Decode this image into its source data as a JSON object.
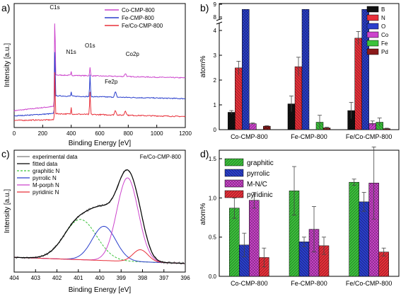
{
  "chart_data": [
    {
      "panel_label": "a)",
      "type": "line",
      "xlabel": "Binding Energy [eV]",
      "ylabel": "Intensity [a.u.]",
      "xlim": [
        0,
        1200
      ],
      "xticks": [
        "0",
        "200",
        "400",
        "600",
        "800",
        "1000",
        "1200"
      ],
      "legend_position": "top-right",
      "annotations": [
        {
          "text": "C1s",
          "x": 285
        },
        {
          "text": "N1s",
          "x": 400
        },
        {
          "text": "O1s",
          "x": 532
        },
        {
          "text": "Co2p",
          "x": 780
        },
        {
          "text": "Fe2p",
          "x": 710
        }
      ],
      "series": [
        {
          "name": "Co-CMP-800",
          "color": "#cc44cc",
          "offset": 3.0,
          "peaks": [
            {
              "x": 285,
              "h": 6.2,
              "w": 3
            },
            {
              "x": 400,
              "h": 0.25,
              "w": 3
            },
            {
              "x": 532,
              "h": 0.55,
              "w": 4
            },
            {
              "x": 780,
              "h": 0.2,
              "w": 8
            }
          ],
          "noise": 0.06
        },
        {
          "name": "Fe-CMP-800",
          "color": "#2a3fcc",
          "offset": 1.6,
          "peaks": [
            {
              "x": 285,
              "h": 4.6,
              "w": 3
            },
            {
              "x": 400,
              "h": 0.3,
              "w": 3
            },
            {
              "x": 532,
              "h": 1.45,
              "w": 4
            },
            {
              "x": 710,
              "h": 0.35,
              "w": 8
            }
          ],
          "noise": 0.06
        },
        {
          "name": "Fe/Co-CMP-800",
          "color": "#e8303a",
          "offset": 0.4,
          "peaks": [
            {
              "x": 285,
              "h": 3.6,
              "w": 3
            },
            {
              "x": 400,
              "h": 0.45,
              "w": 3
            },
            {
              "x": 532,
              "h": 1.5,
              "w": 4
            },
            {
              "x": 710,
              "h": 0.3,
              "w": 8
            },
            {
              "x": 780,
              "h": 0.3,
              "w": 8
            }
          ],
          "noise": 0.07
        }
      ]
    },
    {
      "panel_label": "b)",
      "type": "bar",
      "ylabel": "atom%",
      "ylim": [
        0,
        9
      ],
      "axis_break": [
        4.2,
        8.0
      ],
      "yticks_lower": [
        "0",
        "1",
        "2",
        "3",
        "4"
      ],
      "yticks_upper": [
        "8",
        "9"
      ],
      "categories": [
        "Co-CMP-800",
        "Fe-CMP-800",
        "Fe/Co-CMP-800"
      ],
      "legend_position": "top-right",
      "series": [
        {
          "name": "B",
          "color": "#111111",
          "values": [
            0.7,
            1.04,
            0.77
          ],
          "err": [
            0.07,
            0.32,
            0.33
          ]
        },
        {
          "name": "N",
          "color": "#e8303a",
          "values": [
            2.49,
            2.54,
            3.69
          ],
          "err": [
            0.27,
            0.38,
            0.27
          ]
        },
        {
          "name": "O",
          "color": "#2a3fcc",
          "values": [
            8.6,
            8.6,
            8.6
          ],
          "err": [
            0,
            0,
            0
          ]
        },
        {
          "name": "Co",
          "color": "#cc44cc",
          "values": [
            0.24,
            0.0,
            0.25
          ],
          "err": [
            0.03,
            0.0,
            0.1
          ]
        },
        {
          "name": "Fe",
          "color": "#3cc23c",
          "values": [
            0.0,
            0.3,
            0.3
          ],
          "err": [
            0.0,
            0.28,
            0.17
          ]
        },
        {
          "name": "Pd",
          "color": "#8b1a1a",
          "values": [
            0.14,
            0.07,
            0.04
          ],
          "err": [
            0.02,
            0.03,
            0.02
          ]
        }
      ]
    },
    {
      "panel_label": "c)",
      "type": "line",
      "title": "Fe/Co-CMP-800",
      "xlabel": "Binding Energy [eV]",
      "ylabel": "Intensity [a.u.]",
      "xlim": [
        404,
        396
      ],
      "xticks": [
        "404",
        "403",
        "402",
        "401",
        "400",
        "399",
        "398",
        "397",
        "396"
      ],
      "legend_position": "top-left",
      "series": [
        {
          "name": "experimental data",
          "color": "#7a7a7a"
        },
        {
          "name": "fitted data",
          "color": "#000000"
        },
        {
          "name": "graphitic N",
          "color": "#3cc23c",
          "dashed": true,
          "center": 400.9,
          "height": 0.4,
          "sigma": 0.75
        },
        {
          "name": "pyrrolic N",
          "color": "#2a3fcc",
          "center": 399.8,
          "height": 0.34,
          "sigma": 0.55
        },
        {
          "name": "M-porph N",
          "color": "#cc44cc",
          "center": 398.7,
          "height": 0.83,
          "sigma": 0.5
        },
        {
          "name": "pyridinic N",
          "color": "#e8303a",
          "center": 398.1,
          "height": 0.12,
          "sigma": 0.35
        }
      ]
    },
    {
      "panel_label": "d)",
      "type": "bar",
      "ylabel": "atom%",
      "ylim": [
        0,
        1.5
      ],
      "yticks": [
        "0.0",
        "0.5",
        "1.0",
        "1.5"
      ],
      "categories": [
        "Co-CMP-800",
        "Fe-CMP-800",
        "Fe/Co-CMP-800"
      ],
      "legend_position": "top-left",
      "series": [
        {
          "name": "graphitic",
          "color": "#3cc23c",
          "values": [
            0.87,
            1.09,
            1.2
          ],
          "err": [
            0.13,
            0.31,
            0.04
          ]
        },
        {
          "name": "pyrrolic",
          "color": "#2a3fcc",
          "values": [
            0.4,
            0.44,
            0.95
          ],
          "err": [
            0.15,
            0.06,
            0.12
          ]
        },
        {
          "name": "M-N/C",
          "color": "#cc44cc",
          "values": [
            0.97,
            0.6,
            1.19
          ],
          "err": [
            0.1,
            0.29,
            0.46
          ]
        },
        {
          "name": "pyridinic",
          "color": "#e8303a",
          "values": [
            0.24,
            0.39,
            0.31
          ],
          "err": [
            0.12,
            0.11,
            0.05
          ]
        }
      ]
    }
  ]
}
